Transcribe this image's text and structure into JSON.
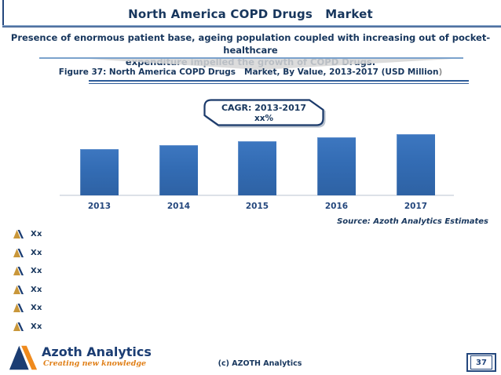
{
  "slide": {
    "title": "North America COPD Drugs   Market",
    "subtitle": {
      "lines": [
        "Presence of enormous patient base, ageing population coupled with increasing out of pocket-healthcare",
        "expenditure impelled the growth of COPD Drugs."
      ]
    },
    "figure_caption": "Figure 37: North America COPD Drugs   Market, By Value, 2013-2017 (USD Million",
    "figure_caption_suffix": ")",
    "cagr": {
      "label": "CAGR: 2013-2017",
      "value": "xx%"
    },
    "source": "Source: Azoth Analytics Estimates",
    "bullets": [
      "Xx",
      "Xx",
      "Xx",
      "Xx",
      "Xx",
      "Xx"
    ],
    "footer": {
      "logo_name": "Azoth Analytics",
      "logo_tagline": "Creating new knowledge",
      "copyright": "(c) AZOTH Analytics",
      "page_number": "37"
    },
    "colors": {
      "navy_text": "#17365d",
      "steel_line": "#2e5c99",
      "light_steel_divider": "#7ba2cc",
      "bar_gradient_top": "#3d77c0",
      "bar_gradient_bottom": "#2e62a4",
      "logo_navy": "#1b3d73",
      "logo_orange": "#e07f17",
      "bullet_gold": "#c9973a",
      "triangle_gray": "#d6d6d6",
      "caption_paren_gray": "#8f8f8f"
    }
  },
  "chart_data": {
    "type": "bar",
    "title": "Figure 37: North America COPD Drugs Market, By Value, 2013-2017 (USD Million)",
    "categories": [
      "2013",
      "2014",
      "2015",
      "2016",
      "2017"
    ],
    "values": [
      76,
      82,
      88,
      95,
      100
    ],
    "values_note": "bars carry no data labels (placeholder slide); values are relative heights with 2017 = 100",
    "xlabel": "",
    "ylabel": "USD Million",
    "legend": false,
    "gridlines": false,
    "value_labels": false,
    "bar_color": "#336cb4"
  }
}
